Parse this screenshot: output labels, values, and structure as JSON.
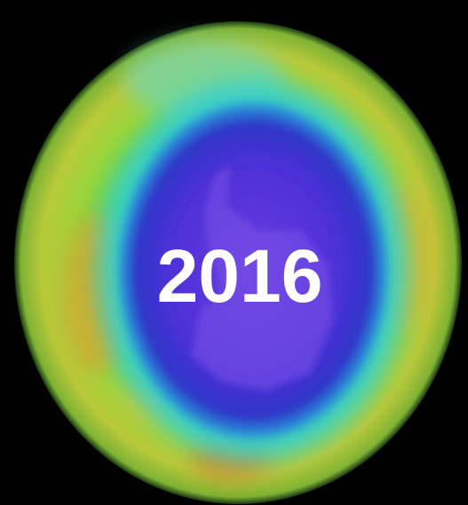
{
  "label": "2016"
}
